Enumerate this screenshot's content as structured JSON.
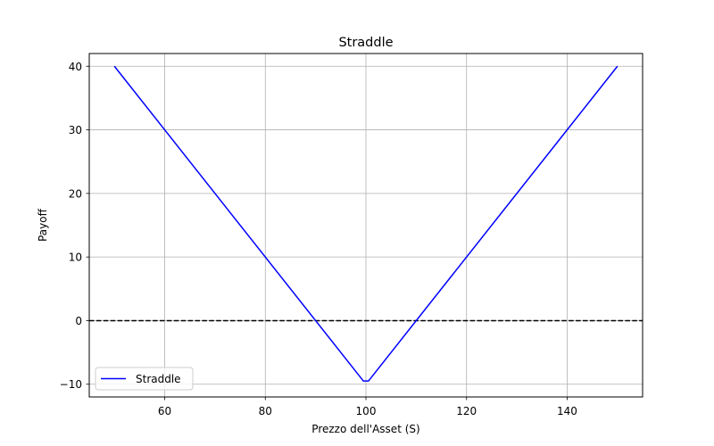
{
  "chart_data": {
    "type": "line",
    "title": "Straddle",
    "xlabel": "Prezzo dell'Asset (S)",
    "ylabel": "Payoff",
    "xlim": [
      45,
      155
    ],
    "ylim": [
      -12,
      42
    ],
    "xticks": [
      60,
      80,
      100,
      120,
      140
    ],
    "yticks": [
      -10,
      0,
      10,
      20,
      30,
      40
    ],
    "ytick_labels": [
      "−10",
      "0",
      "10",
      "20",
      "30",
      "40"
    ],
    "grid": true,
    "legend_position": "lower-left",
    "series": [
      {
        "name": "Straddle",
        "color": "#0000ff",
        "style": "solid",
        "x": [
          50,
          99.5,
          100.5,
          150
        ],
        "y": [
          40,
          -9.5,
          -9.5,
          40
        ]
      }
    ],
    "reference_lines": [
      {
        "type": "horizontal",
        "y": 0,
        "color": "#000000",
        "style": "dashed"
      }
    ]
  }
}
